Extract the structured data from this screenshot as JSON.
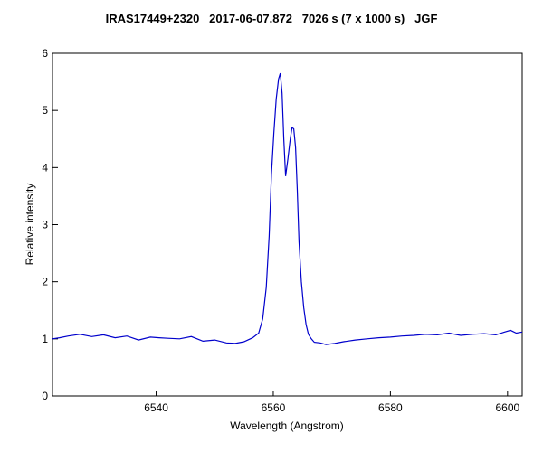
{
  "chart_data": {
    "type": "line",
    "title": "IRAS17449+2320   2017-06-07.872   7026 s (7 x 1000 s)   JGF",
    "xlabel": "Wavelength (Angstrom)",
    "ylabel": "Relative intensity",
    "xlim": [
      6522.3,
      6602.5
    ],
    "ylim": [
      0,
      6
    ],
    "xticks": [
      6540,
      6560,
      6580,
      6600
    ],
    "yticks": [
      0,
      1,
      2,
      3,
      4,
      5,
      6
    ],
    "grid": false,
    "line_color": "#0000cc",
    "series": [
      {
        "x": [
          6522.3,
          6523.5,
          6525,
          6527,
          6529,
          6531,
          6533,
          6535,
          6537,
          6539,
          6540.5,
          6542,
          6544,
          6546,
          6548,
          6550,
          6552,
          6553.5,
          6555,
          6556.5,
          6557.5,
          6558.2,
          6558.8,
          6559.3,
          6559.7,
          6560.1,
          6560.5,
          6560.9,
          6561.2,
          6561.5,
          6561.8,
          6562.1,
          6562.5,
          6562.9,
          6563.2,
          6563.5,
          6563.8,
          6564.1,
          6564.4,
          6564.8,
          6565.2,
          6565.6,
          6566.0,
          6566.5,
          6567,
          6568,
          6569,
          6570.5,
          6572,
          6574,
          6576,
          6578,
          6580,
          6582,
          6584,
          6586,
          6588,
          6590,
          6592,
          6594,
          6596,
          6598,
          6599.5,
          6600.5,
          6601.5,
          6602.5
        ],
        "y": [
          1.0,
          1.02,
          1.05,
          1.08,
          1.04,
          1.07,
          1.02,
          1.05,
          0.98,
          1.03,
          1.02,
          1.01,
          1.0,
          1.04,
          0.96,
          0.98,
          0.93,
          0.92,
          0.95,
          1.02,
          1.1,
          1.35,
          1.9,
          2.8,
          3.9,
          4.6,
          5.2,
          5.55,
          5.65,
          5.3,
          4.5,
          3.85,
          4.15,
          4.5,
          4.7,
          4.68,
          4.35,
          3.6,
          2.7,
          2.0,
          1.55,
          1.25,
          1.08,
          1.0,
          0.94,
          0.93,
          0.9,
          0.92,
          0.95,
          0.98,
          1.0,
          1.02,
          1.03,
          1.05,
          1.06,
          1.08,
          1.07,
          1.1,
          1.06,
          1.08,
          1.09,
          1.07,
          1.12,
          1.15,
          1.1,
          1.12
        ]
      }
    ]
  }
}
